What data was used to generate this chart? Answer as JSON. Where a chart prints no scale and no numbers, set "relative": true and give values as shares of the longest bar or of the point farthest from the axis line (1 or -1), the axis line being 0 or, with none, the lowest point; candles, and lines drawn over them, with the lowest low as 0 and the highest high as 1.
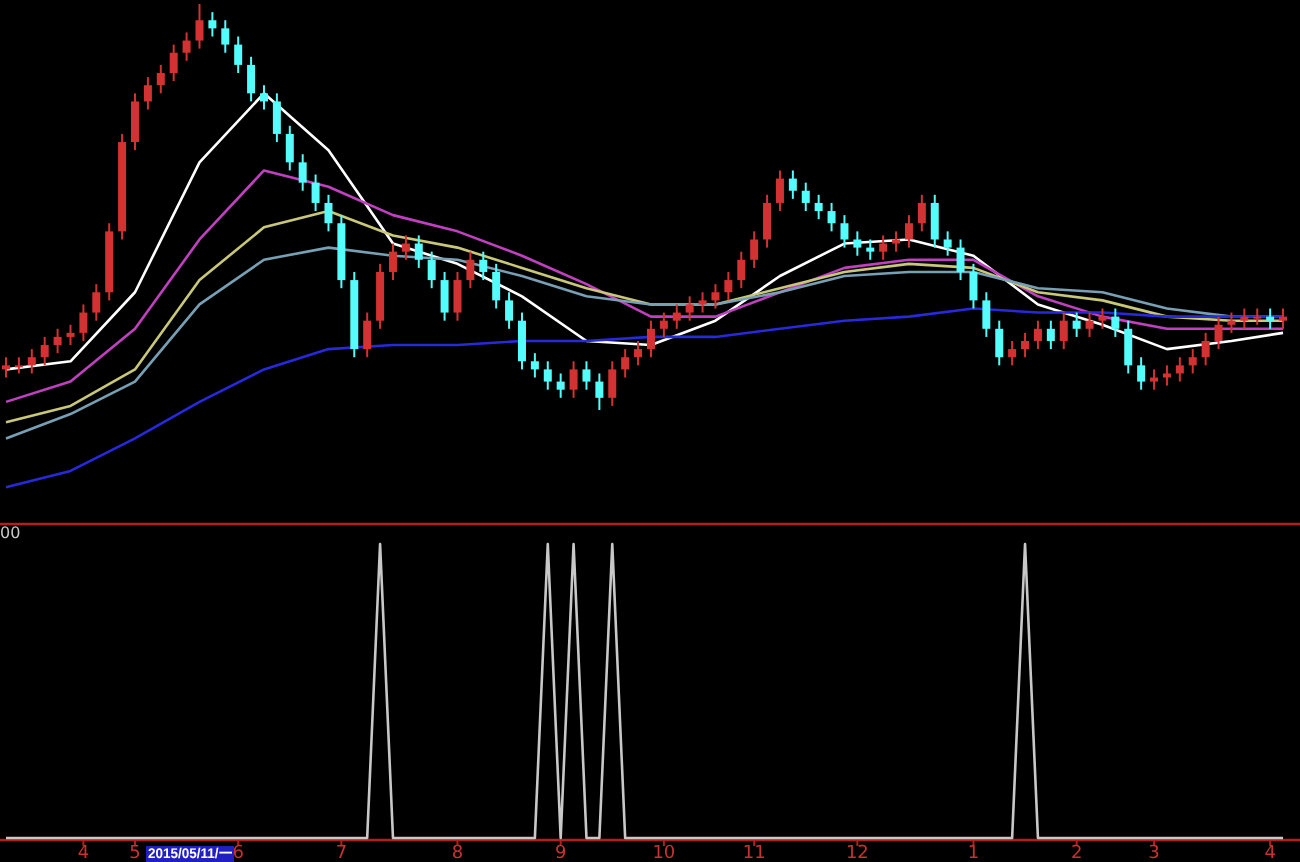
{
  "chart_data": [
    {
      "type": "candlestick",
      "relative": true,
      "tick_labels": false,
      "categories": [
        null,
        null,
        null,
        null,
        null,
        null,
        null,
        null,
        null,
        null,
        null,
        null,
        null,
        null,
        null,
        null,
        null,
        null,
        null,
        null,
        null,
        null,
        null,
        null,
        null,
        null,
        null,
        null,
        null,
        null,
        null,
        null,
        null,
        null,
        null,
        null,
        null,
        null,
        null,
        null,
        null,
        null,
        null,
        null,
        null,
        null,
        null,
        null,
        null,
        null,
        null,
        null,
        null,
        null,
        null,
        null,
        null,
        null,
        null,
        null,
        null,
        null,
        null,
        null,
        null,
        null,
        null,
        null,
        null,
        null,
        null,
        null,
        null,
        null,
        null,
        null,
        null,
        null,
        null,
        null,
        null,
        null,
        null,
        null,
        null,
        null,
        null,
        null,
        null,
        null,
        null,
        null,
        null,
        null,
        null,
        null,
        null,
        null,
        null,
        null
      ],
      "ohlc": [
        [
          0.1,
          0.13,
          0.08,
          0.11
        ],
        [
          0.11,
          0.13,
          0.09,
          0.11
        ],
        [
          0.11,
          0.15,
          0.09,
          0.13
        ],
        [
          0.13,
          0.18,
          0.11,
          0.16
        ],
        [
          0.16,
          0.2,
          0.14,
          0.18
        ],
        [
          0.18,
          0.21,
          0.16,
          0.19
        ],
        [
          0.19,
          0.26,
          0.17,
          0.24
        ],
        [
          0.24,
          0.31,
          0.22,
          0.29
        ],
        [
          0.29,
          0.46,
          0.27,
          0.44
        ],
        [
          0.44,
          0.68,
          0.42,
          0.66
        ],
        [
          0.66,
          0.78,
          0.64,
          0.76
        ],
        [
          0.76,
          0.82,
          0.74,
          0.8
        ],
        [
          0.8,
          0.85,
          0.78,
          0.83
        ],
        [
          0.83,
          0.9,
          0.81,
          0.88
        ],
        [
          0.88,
          0.93,
          0.86,
          0.91
        ],
        [
          0.91,
          1.0,
          0.89,
          0.96
        ],
        [
          0.96,
          0.98,
          0.92,
          0.94
        ],
        [
          0.94,
          0.96,
          0.88,
          0.9
        ],
        [
          0.9,
          0.92,
          0.83,
          0.85
        ],
        [
          0.85,
          0.87,
          0.76,
          0.78
        ],
        [
          0.78,
          0.8,
          0.74,
          0.76
        ],
        [
          0.76,
          0.78,
          0.66,
          0.68
        ],
        [
          0.68,
          0.7,
          0.59,
          0.61
        ],
        [
          0.61,
          0.63,
          0.54,
          0.56
        ],
        [
          0.56,
          0.58,
          0.49,
          0.51
        ],
        [
          0.51,
          0.53,
          0.44,
          0.46
        ],
        [
          0.46,
          0.48,
          0.3,
          0.32
        ],
        [
          0.32,
          0.34,
          0.13,
          0.15
        ],
        [
          0.15,
          0.24,
          0.13,
          0.22
        ],
        [
          0.22,
          0.36,
          0.2,
          0.34
        ],
        [
          0.34,
          0.41,
          0.32,
          0.39
        ],
        [
          0.39,
          0.43,
          0.37,
          0.41
        ],
        [
          0.41,
          0.43,
          0.35,
          0.37
        ],
        [
          0.37,
          0.39,
          0.3,
          0.32
        ],
        [
          0.32,
          0.34,
          0.22,
          0.24
        ],
        [
          0.24,
          0.34,
          0.22,
          0.32
        ],
        [
          0.32,
          0.39,
          0.3,
          0.37
        ],
        [
          0.37,
          0.39,
          0.32,
          0.34
        ],
        [
          0.34,
          0.36,
          0.25,
          0.27
        ],
        [
          0.27,
          0.29,
          0.2,
          0.22
        ],
        [
          0.22,
          0.24,
          0.1,
          0.12
        ],
        [
          0.12,
          0.14,
          0.08,
          0.1
        ],
        [
          0.1,
          0.12,
          0.05,
          0.07
        ],
        [
          0.07,
          0.09,
          0.03,
          0.05
        ],
        [
          0.05,
          0.12,
          0.03,
          0.1
        ],
        [
          0.1,
          0.12,
          0.05,
          0.07
        ],
        [
          0.07,
          0.09,
          0.0,
          0.03
        ],
        [
          0.03,
          0.12,
          0.01,
          0.1
        ],
        [
          0.1,
          0.15,
          0.08,
          0.13
        ],
        [
          0.13,
          0.17,
          0.11,
          0.15
        ],
        [
          0.15,
          0.22,
          0.13,
          0.2
        ],
        [
          0.2,
          0.24,
          0.18,
          0.22
        ],
        [
          0.22,
          0.26,
          0.2,
          0.24
        ],
        [
          0.24,
          0.28,
          0.22,
          0.26
        ],
        [
          0.26,
          0.29,
          0.24,
          0.27
        ],
        [
          0.27,
          0.31,
          0.25,
          0.29
        ],
        [
          0.29,
          0.34,
          0.27,
          0.32
        ],
        [
          0.32,
          0.39,
          0.3,
          0.37
        ],
        [
          0.37,
          0.44,
          0.35,
          0.42
        ],
        [
          0.42,
          0.53,
          0.4,
          0.51
        ],
        [
          0.51,
          0.59,
          0.49,
          0.57
        ],
        [
          0.57,
          0.59,
          0.52,
          0.54
        ],
        [
          0.54,
          0.56,
          0.49,
          0.51
        ],
        [
          0.51,
          0.53,
          0.47,
          0.49
        ],
        [
          0.49,
          0.51,
          0.44,
          0.46
        ],
        [
          0.46,
          0.48,
          0.4,
          0.42
        ],
        [
          0.42,
          0.44,
          0.38,
          0.4
        ],
        [
          0.4,
          0.42,
          0.37,
          0.39
        ],
        [
          0.39,
          0.43,
          0.37,
          0.41
        ],
        [
          0.41,
          0.44,
          0.39,
          0.42
        ],
        [
          0.42,
          0.48,
          0.4,
          0.46
        ],
        [
          0.46,
          0.53,
          0.44,
          0.51
        ],
        [
          0.51,
          0.53,
          0.4,
          0.42
        ],
        [
          0.42,
          0.44,
          0.38,
          0.4
        ],
        [
          0.4,
          0.42,
          0.32,
          0.34
        ],
        [
          0.34,
          0.36,
          0.25,
          0.27
        ],
        [
          0.27,
          0.29,
          0.18,
          0.2
        ],
        [
          0.2,
          0.22,
          0.11,
          0.13
        ],
        [
          0.13,
          0.17,
          0.11,
          0.15
        ],
        [
          0.15,
          0.19,
          0.13,
          0.17
        ],
        [
          0.17,
          0.22,
          0.15,
          0.2
        ],
        [
          0.2,
          0.22,
          0.15,
          0.17
        ],
        [
          0.17,
          0.24,
          0.15,
          0.22
        ],
        [
          0.22,
          0.24,
          0.18,
          0.2
        ],
        [
          0.2,
          0.24,
          0.18,
          0.22
        ],
        [
          0.22,
          0.25,
          0.2,
          0.23
        ],
        [
          0.23,
          0.25,
          0.18,
          0.2
        ],
        [
          0.2,
          0.22,
          0.09,
          0.11
        ],
        [
          0.11,
          0.13,
          0.05,
          0.07
        ],
        [
          0.07,
          0.1,
          0.05,
          0.08
        ],
        [
          0.08,
          0.11,
          0.06,
          0.09
        ],
        [
          0.09,
          0.13,
          0.07,
          0.11
        ],
        [
          0.11,
          0.15,
          0.09,
          0.13
        ],
        [
          0.13,
          0.19,
          0.11,
          0.17
        ],
        [
          0.17,
          0.23,
          0.15,
          0.21
        ],
        [
          0.21,
          0.24,
          0.19,
          0.22
        ],
        [
          0.22,
          0.25,
          0.2,
          0.23
        ],
        [
          0.23,
          0.25,
          0.21,
          0.23
        ],
        [
          0.23,
          0.25,
          0.2,
          0.22
        ],
        [
          0.22,
          0.25,
          0.2,
          0.23
        ]
      ],
      "colors": [
        "#d23232",
        "#d23232",
        "#d23232",
        "#d23232",
        "#d23232",
        "#d23232",
        "#d23232",
        "#d23232",
        "#d23232",
        "#d23232",
        "#d23232",
        "#d23232",
        "#d23232",
        "#d23232",
        "#d23232",
        "#d23232",
        "#54fcfc",
        "#54fcfc",
        "#54fcfc",
        "#54fcfc",
        "#54fcfc",
        "#54fcfc",
        "#54fcfc",
        "#54fcfc",
        "#54fcfc",
        "#54fcfc",
        "#54fcfc",
        "#54fcfc",
        "#d23232",
        "#d23232",
        "#d23232",
        "#d23232",
        "#54fcfc",
        "#54fcfc",
        "#54fcfc",
        "#d23232",
        "#d23232",
        "#54fcfc",
        "#54fcfc",
        "#54fcfc",
        "#54fcfc",
        "#54fcfc",
        "#54fcfc",
        "#54fcfc",
        "#d23232",
        "#54fcfc",
        "#54fcfc",
        "#d23232",
        "#d23232",
        "#d23232",
        "#d23232",
        "#d23232",
        "#d23232",
        "#d23232",
        "#d23232",
        "#d23232",
        "#d23232",
        "#d23232",
        "#d23232",
        "#d23232",
        "#d23232",
        "#54fcfc",
        "#54fcfc",
        "#54fcfc",
        "#54fcfc",
        "#54fcfc",
        "#54fcfc",
        "#54fcfc",
        "#d23232",
        "#d23232",
        "#d23232",
        "#d23232",
        "#54fcfc",
        "#54fcfc",
        "#54fcfc",
        "#54fcfc",
        "#54fcfc",
        "#54fcfc",
        "#d23232",
        "#d23232",
        "#d23232",
        "#54fcfc",
        "#d23232",
        "#54fcfc",
        "#d23232",
        "#d23232",
        "#54fcfc",
        "#54fcfc",
        "#54fcfc",
        "#d23232",
        "#d23232",
        "#d23232",
        "#d23232",
        "#d23232",
        "#d23232",
        "#d23232",
        "#d23232",
        "#d23232",
        "#54fcfc",
        "#d23232"
      ],
      "series": [
        {
          "type": "line",
          "color": "#ffffff",
          "values": [
            0.1,
            null,
            null,
            null,
            null,
            0.12,
            null,
            null,
            null,
            null,
            0.29,
            null,
            null,
            null,
            null,
            0.61,
            null,
            null,
            null,
            null,
            0.78,
            null,
            null,
            null,
            null,
            0.64,
            null,
            null,
            null,
            null,
            0.41,
            null,
            null,
            null,
            null,
            0.36,
            null,
            null,
            null,
            null,
            0.28,
            null,
            null,
            null,
            null,
            0.17,
            null,
            null,
            null,
            null,
            0.16,
            null,
            null,
            null,
            null,
            0.22,
            null,
            null,
            null,
            null,
            0.33,
            null,
            null,
            null,
            null,
            0.41,
            null,
            null,
            null,
            null,
            0.42,
            null,
            null,
            null,
            null,
            0.38,
            null,
            null,
            null,
            null,
            0.26,
            null,
            null,
            null,
            null,
            0.21,
            null,
            null,
            null,
            null,
            0.15,
            null,
            null,
            null,
            null,
            0.17,
            null,
            null,
            null,
            0.19
          ]
        },
        {
          "type": "line",
          "color": "#c040c0",
          "values": [
            0.02,
            null,
            null,
            null,
            null,
            0.07,
            null,
            null,
            null,
            null,
            0.2,
            null,
            null,
            null,
            null,
            0.42,
            null,
            null,
            null,
            null,
            0.59,
            null,
            null,
            null,
            null,
            0.55,
            null,
            null,
            null,
            null,
            0.48,
            null,
            null,
            null,
            null,
            0.44,
            null,
            null,
            null,
            null,
            0.38,
            null,
            null,
            null,
            null,
            0.31,
            null,
            null,
            null,
            null,
            0.23,
            null,
            null,
            null,
            null,
            0.23,
            null,
            null,
            null,
            null,
            0.29,
            null,
            null,
            null,
            null,
            0.35,
            null,
            null,
            null,
            null,
            0.37,
            null,
            null,
            null,
            null,
            0.37,
            null,
            null,
            null,
            null,
            0.28,
            null,
            null,
            null,
            null,
            0.23,
            null,
            null,
            null,
            null,
            0.2,
            null,
            null,
            null,
            null,
            0.2,
            null,
            null,
            null,
            0.2
          ]
        },
        {
          "type": "line",
          "color": "#c8c878",
          "values": [
            -0.03,
            null,
            null,
            null,
            null,
            0.01,
            null,
            null,
            null,
            null,
            0.1,
            null,
            null,
            null,
            null,
            0.32,
            null,
            null,
            null,
            null,
            0.45,
            null,
            null,
            null,
            null,
            0.49,
            null,
            null,
            null,
            null,
            0.43,
            null,
            null,
            null,
            null,
            0.4,
            null,
            null,
            null,
            null,
            0.35,
            null,
            null,
            null,
            null,
            0.3,
            null,
            null,
            null,
            null,
            0.26,
            null,
            null,
            null,
            null,
            0.26,
            null,
            null,
            null,
            null,
            0.3,
            null,
            null,
            null,
            null,
            0.34,
            null,
            null,
            null,
            null,
            0.36,
            null,
            null,
            null,
            null,
            0.35,
            null,
            null,
            null,
            null,
            0.29,
            null,
            null,
            null,
            null,
            0.27,
            null,
            null,
            null,
            null,
            0.23,
            null,
            null,
            null,
            null,
            0.22,
            null,
            null,
            null,
            0.22
          ]
        },
        {
          "type": "line",
          "color": "#78a0b4",
          "values": [
            -0.07,
            null,
            null,
            null,
            null,
            -0.01,
            null,
            null,
            null,
            null,
            0.07,
            null,
            null,
            null,
            null,
            0.26,
            null,
            null,
            null,
            null,
            0.37,
            null,
            null,
            null,
            null,
            0.4,
            null,
            null,
            null,
            null,
            0.38,
            null,
            null,
            null,
            null,
            0.37,
            null,
            null,
            null,
            null,
            0.33,
            null,
            null,
            null,
            null,
            0.28,
            null,
            null,
            null,
            null,
            0.26,
            null,
            null,
            null,
            null,
            0.26,
            null,
            null,
            null,
            null,
            0.29,
            null,
            null,
            null,
            null,
            0.33,
            null,
            null,
            null,
            null,
            0.34,
            null,
            null,
            null,
            null,
            0.34,
            null,
            null,
            null,
            null,
            0.3,
            null,
            null,
            null,
            null,
            0.29,
            null,
            null,
            null,
            null,
            0.25,
            null,
            null,
            null,
            null,
            0.23,
            null,
            null,
            null,
            0.23
          ]
        },
        {
          "type": "line",
          "color": "#2828dc",
          "values": [
            -0.19,
            null,
            null,
            null,
            null,
            -0.15,
            null,
            null,
            null,
            null,
            -0.07,
            null,
            null,
            null,
            null,
            0.02,
            null,
            null,
            null,
            null,
            0.1,
            null,
            null,
            null,
            null,
            0.15,
            null,
            null,
            null,
            null,
            0.16,
            null,
            null,
            null,
            null,
            0.16,
            null,
            null,
            null,
            null,
            0.17,
            null,
            null,
            null,
            null,
            0.17,
            null,
            null,
            null,
            null,
            0.18,
            null,
            null,
            null,
            null,
            0.18,
            null,
            null,
            null,
            null,
            0.2,
            null,
            null,
            null,
            null,
            0.22,
            null,
            null,
            null,
            null,
            0.23,
            null,
            null,
            null,
            null,
            0.25,
            null,
            null,
            null,
            null,
            0.24,
            null,
            null,
            null,
            null,
            0.24,
            null,
            null,
            null,
            null,
            0.23,
            null,
            null,
            null,
            null,
            0.23,
            null,
            null,
            null,
            0.23
          ]
        }
      ]
    },
    {
      "type": "line",
      "relative": true,
      "tick_labels": "x",
      "categories": [
        null,
        null,
        null,
        null,
        null,
        null,
        "4",
        null,
        null,
        null,
        "5",
        null,
        null,
        null,
        null,
        null,
        null,
        null,
        "6",
        null,
        null,
        null,
        null,
        null,
        null,
        null,
        "7",
        null,
        null,
        null,
        null,
        null,
        null,
        null,
        null,
        "8",
        null,
        null,
        null,
        null,
        null,
        null,
        null,
        "9",
        null,
        null,
        null,
        null,
        null,
        null,
        null,
        "10",
        null,
        null,
        null,
        null,
        null,
        null,
        "11",
        null,
        null,
        null,
        null,
        null,
        null,
        null,
        "12",
        null,
        null,
        null,
        null,
        null,
        null,
        null,
        null,
        "1",
        null,
        null,
        null,
        null,
        null,
        null,
        null,
        "2",
        null,
        null,
        null,
        null,
        null,
        "3",
        null,
        null,
        null,
        null,
        null,
        null,
        null,
        null,
        "4",
        null
      ],
      "series": [
        {
          "color": "#c8c8c8",
          "values": [
            0,
            0,
            0,
            0,
            0,
            0,
            0,
            0,
            0,
            0,
            0,
            0,
            0,
            0,
            0,
            0,
            0,
            0,
            0,
            0,
            0,
            0,
            0,
            0,
            0,
            0,
            0,
            0,
            0,
            1,
            0,
            0,
            0,
            0,
            0,
            0,
            0,
            0,
            0,
            0,
            0,
            0,
            1,
            0,
            1,
            0,
            0,
            1,
            0,
            0,
            0,
            0,
            0,
            0,
            0,
            0,
            0,
            0,
            0,
            0,
            0,
            0,
            0,
            0,
            0,
            0,
            0,
            0,
            0,
            0,
            0,
            0,
            0,
            0,
            0,
            0,
            0,
            0,
            0,
            1,
            0,
            0,
            0,
            0,
            0,
            0,
            0,
            0,
            0,
            0,
            0,
            0,
            0,
            0,
            0,
            0,
            0,
            0,
            0,
            0
          ]
        }
      ],
      "annotations": [
        "2015/05/11/一",
        "00"
      ]
    }
  ]
}
